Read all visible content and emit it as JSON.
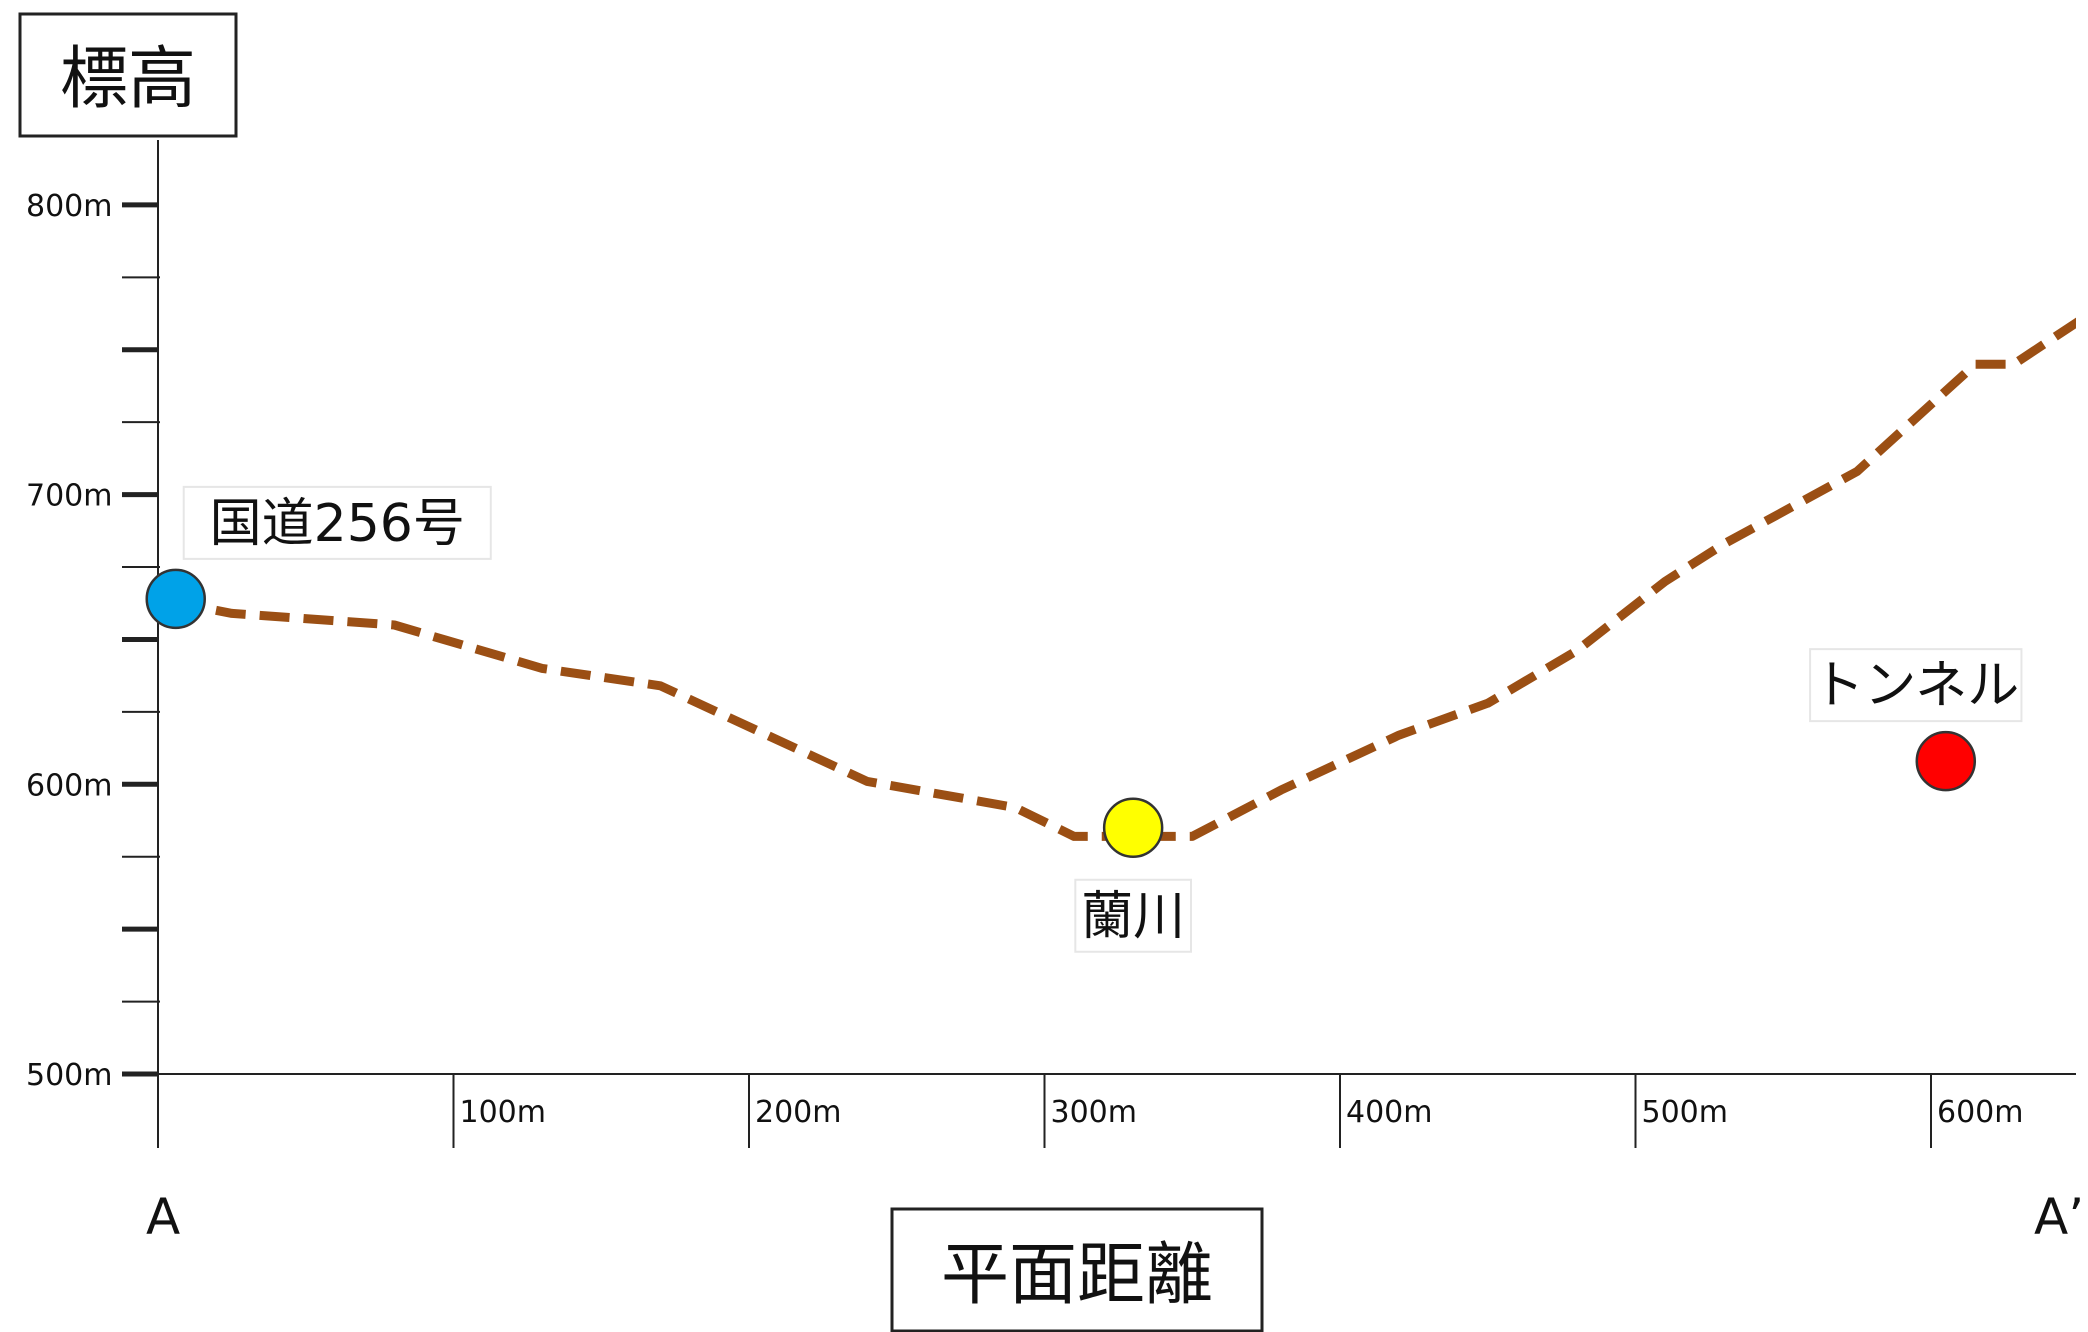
{
  "chart_data": {
    "type": "line",
    "ylabel": "標高",
    "xlabel": "平面距離",
    "start_label": "A",
    "end_label": "A’",
    "xlim": [
      0,
      650
    ],
    "ylim": [
      500,
      810
    ],
    "yticks": [
      {
        "value": 500,
        "label": "500m"
      },
      {
        "value": 600,
        "label": "600m"
      },
      {
        "value": 700,
        "label": "700m"
      },
      {
        "value": 800,
        "label": "800m"
      }
    ],
    "ytick_minor_step": 25,
    "xticks": [
      {
        "value": 0,
        "label": ""
      },
      {
        "value": 100,
        "label": "100m"
      },
      {
        "value": 200,
        "label": "200m"
      },
      {
        "value": 300,
        "label": "300m"
      },
      {
        "value": 400,
        "label": "400m"
      },
      {
        "value": 500,
        "label": "500m"
      },
      {
        "value": 600,
        "label": "600m"
      }
    ],
    "series": [
      {
        "style": "dashed",
        "color": "#9b4f14",
        "points": [
          [
            5,
            663
          ],
          [
            25,
            659
          ],
          [
            80,
            655
          ],
          [
            130,
            640
          ],
          [
            170,
            634
          ],
          [
            240,
            601
          ],
          [
            290,
            592
          ],
          [
            310,
            582
          ],
          [
            350,
            582
          ],
          [
            380,
            598
          ],
          [
            420,
            617
          ],
          [
            450,
            628
          ],
          [
            480,
            646
          ],
          [
            510,
            670
          ],
          [
            530,
            683
          ],
          [
            575,
            708
          ],
          [
            615,
            745
          ],
          [
            628,
            745
          ],
          [
            665,
            770
          ],
          [
            710,
            776
          ]
        ]
      }
    ],
    "annotations": [
      {
        "label": "国道256号",
        "x": 6,
        "y": 664,
        "color": "#00a2e8",
        "label_pos": "above-right"
      },
      {
        "label": "蘭川",
        "x": 330,
        "y": 585,
        "color": "#ffff00",
        "label_pos": "below"
      },
      {
        "label": "トンネル",
        "x": 605,
        "y": 608,
        "color": "#ff0000",
        "label_pos": "above"
      }
    ]
  }
}
